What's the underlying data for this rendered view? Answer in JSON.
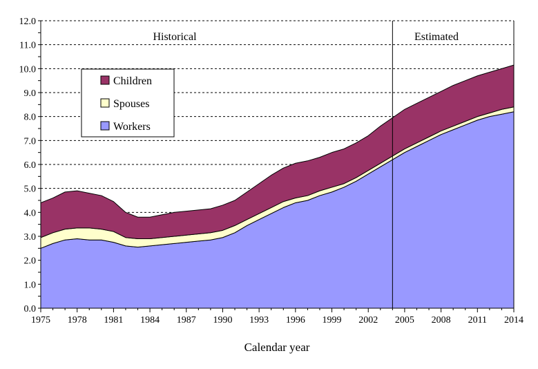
{
  "chart_data": {
    "type": "area",
    "stacked": true,
    "title": "",
    "xlabel": "Calendar year",
    "ylabel": "",
    "xlim": [
      1975,
      2014
    ],
    "ylim": [
      0,
      12
    ],
    "grid": true,
    "x_tick_labels": [
      "1975",
      "1978",
      "1981",
      "1984",
      "1987",
      "1990",
      "1993",
      "1996",
      "1999",
      "2002",
      "2005",
      "2008",
      "2011",
      "2014"
    ],
    "y_tick_labels": [
      "0.0",
      "1.0",
      "2.0",
      "3.0",
      "4.0",
      "5.0",
      "6.0",
      "7.0",
      "8.0",
      "9.0",
      "10.0",
      "11.0",
      "12.0"
    ],
    "annotations": {
      "historical": "Historical",
      "estimated": "Estimated",
      "divider_year": 2004
    },
    "legend": {
      "placement": "top-left",
      "entries": [
        "Children",
        "Spouses",
        "Workers"
      ]
    },
    "x": [
      1975,
      1976,
      1977,
      1978,
      1979,
      1980,
      1981,
      1982,
      1983,
      1984,
      1985,
      1986,
      1987,
      1988,
      1989,
      1990,
      1991,
      1992,
      1993,
      1994,
      1995,
      1996,
      1997,
      1998,
      1999,
      2000,
      2001,
      2002,
      2003,
      2004,
      2005,
      2006,
      2007,
      2008,
      2009,
      2010,
      2011,
      2012,
      2013,
      2014
    ],
    "series": [
      {
        "name": "Workers",
        "color": "#9999ff",
        "values": [
          2.5,
          2.7,
          2.85,
          2.9,
          2.85,
          2.85,
          2.75,
          2.6,
          2.55,
          2.6,
          2.65,
          2.7,
          2.75,
          2.8,
          2.85,
          2.95,
          3.15,
          3.45,
          3.7,
          3.95,
          4.2,
          4.4,
          4.5,
          4.7,
          4.85,
          5.05,
          5.3,
          5.6,
          5.9,
          6.2,
          6.5,
          6.75,
          7.0,
          7.25,
          7.45,
          7.65,
          7.85,
          8.0,
          8.1,
          8.2
        ]
      },
      {
        "name": "Spouses",
        "color": "#ffffcc",
        "values": [
          0.45,
          0.45,
          0.45,
          0.45,
          0.5,
          0.45,
          0.45,
          0.35,
          0.35,
          0.3,
          0.3,
          0.3,
          0.3,
          0.3,
          0.3,
          0.3,
          0.3,
          0.25,
          0.25,
          0.25,
          0.25,
          0.2,
          0.2,
          0.2,
          0.2,
          0.15,
          0.15,
          0.15,
          0.15,
          0.15,
          0.15,
          0.15,
          0.15,
          0.15,
          0.15,
          0.15,
          0.15,
          0.15,
          0.2,
          0.2
        ]
      },
      {
        "name": "Children",
        "color": "#993366",
        "values": [
          1.45,
          1.45,
          1.55,
          1.55,
          1.45,
          1.4,
          1.25,
          1.05,
          0.9,
          0.9,
          0.95,
          1.0,
          1.0,
          1.0,
          1.0,
          1.05,
          1.05,
          1.15,
          1.25,
          1.35,
          1.4,
          1.45,
          1.45,
          1.4,
          1.45,
          1.45,
          1.45,
          1.45,
          1.55,
          1.6,
          1.65,
          1.65,
          1.65,
          1.65,
          1.7,
          1.7,
          1.7,
          1.7,
          1.7,
          1.75
        ]
      }
    ]
  }
}
